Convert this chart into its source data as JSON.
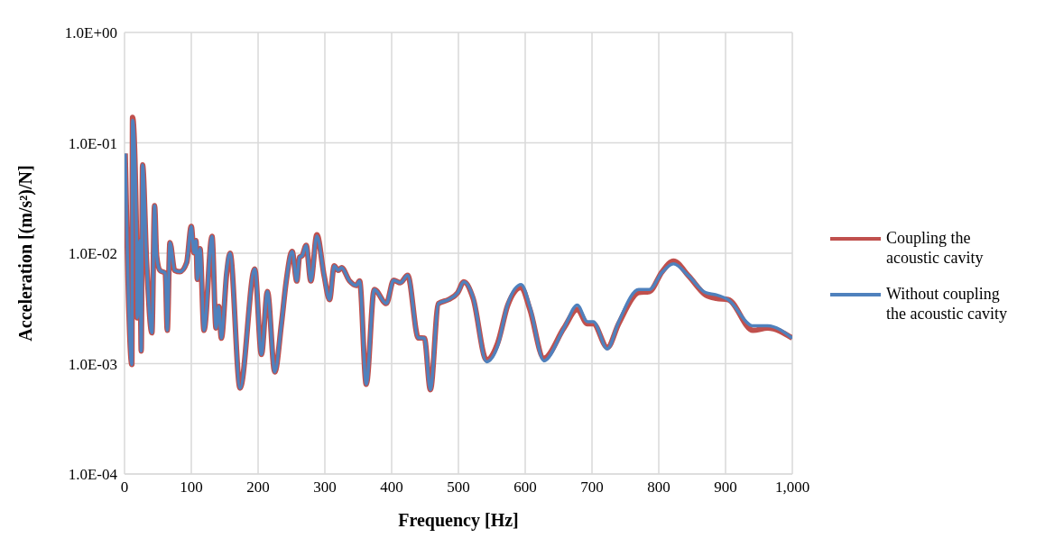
{
  "chart_data": {
    "type": "line",
    "xlabel": "Frequency [Hz]",
    "ylabel": "Acceleration [(m/s²)/N]",
    "log": "y",
    "grid": true,
    "legend": "right",
    "line_style": "solid",
    "marker": "none",
    "xlim": [
      0,
      1000
    ],
    "xticks": [
      0,
      100,
      200,
      300,
      400,
      500,
      600,
      700,
      800,
      900,
      {
        "value": 1000,
        "label": "1,000"
      }
    ],
    "ylim": [
      0.0001,
      1
    ],
    "yticks": [
      {
        "value": 0.0001,
        "label": "1.0E-04"
      },
      {
        "value": 0.001,
        "label": "1.0E-03"
      },
      {
        "value": 0.01,
        "label": "1.0E-02"
      },
      {
        "value": 0.1,
        "label": "1.0E-01"
      },
      {
        "value": 1,
        "label": "1.0E+00"
      }
    ],
    "x": [
      1,
      11,
      12,
      18,
      19,
      23,
      25,
      27,
      33,
      41,
      45,
      48,
      53,
      61,
      64,
      68,
      75,
      83,
      93,
      100,
      104,
      107,
      109,
      113,
      119,
      131,
      137,
      141,
      145,
      153,
      158,
      173,
      195,
      205,
      214,
      225,
      235,
      242,
      251,
      258,
      262,
      266,
      272,
      279,
      288,
      299,
      307,
      314,
      320,
      325,
      337,
      347,
      352,
      362,
      374,
      392,
      403,
      413,
      424,
      440,
      449,
      458,
      470,
      485,
      499,
      508,
      522,
      542,
      559,
      574,
      594,
      607,
      628,
      658,
      678,
      693,
      702,
      723,
      740,
      770,
      786,
      805,
      822,
      845,
      870,
      886,
      904,
      941,
      963,
      1000
    ],
    "series": [
      {
        "name": "Coupling the acoustic cavity",
        "color": "#c0504d",
        "values": [
          0.08,
          0.00098,
          0.17,
          0.0135,
          0.0026,
          0.013,
          0.0013,
          0.063,
          0.0085,
          0.0019,
          0.027,
          0.0095,
          0.007,
          0.0066,
          0.002,
          0.0125,
          0.007,
          0.0068,
          0.0082,
          0.0175,
          0.0101,
          0.013,
          0.0058,
          0.011,
          0.002,
          0.0142,
          0.0021,
          0.0033,
          0.0017,
          0.0066,
          0.01,
          0.0006,
          0.0072,
          0.00121,
          0.0045,
          0.00084,
          0.0023,
          0.0055,
          0.0104,
          0.0056,
          0.0092,
          0.0095,
          0.0118,
          0.0056,
          0.0147,
          0.0062,
          0.0038,
          0.0077,
          0.007,
          0.0074,
          0.0056,
          0.0051,
          0.0056,
          0.00065,
          0.0047,
          0.0035,
          0.0057,
          0.0054,
          0.0063,
          0.00171,
          0.0017,
          0.00058,
          0.0035,
          0.0038,
          0.0044,
          0.0055,
          0.0039,
          0.00108,
          0.00155,
          0.0034,
          0.0049,
          0.0031,
          0.00112,
          0.0021,
          0.0031,
          0.0023,
          0.0023,
          0.0014,
          0.0023,
          0.0044,
          0.0045,
          0.0068,
          0.0085,
          0.0062,
          0.0042,
          0.0039,
          0.0038,
          0.002,
          0.0021,
          0.0017
        ]
      },
      {
        "name": "Without coupling the acoustic cavity",
        "color": "#4f81bd",
        "values": [
          0.08,
          0.00098,
          0.16,
          0.0135,
          0.0026,
          0.013,
          0.0013,
          0.063,
          0.0085,
          0.0019,
          0.027,
          0.0095,
          0.007,
          0.0066,
          0.002,
          0.0125,
          0.007,
          0.0068,
          0.0082,
          0.0175,
          0.0101,
          0.013,
          0.0058,
          0.011,
          0.002,
          0.0142,
          0.0021,
          0.0033,
          0.0017,
          0.0072,
          0.01,
          0.0006,
          0.0072,
          0.00121,
          0.0045,
          0.00084,
          0.0023,
          0.0055,
          0.0104,
          0.0056,
          0.0092,
          0.0095,
          0.0118,
          0.0056,
          0.0143,
          0.0062,
          0.0038,
          0.0077,
          0.007,
          0.0074,
          0.0056,
          0.0051,
          0.0056,
          0.00065,
          0.0047,
          0.0035,
          0.0057,
          0.0054,
          0.0063,
          0.00171,
          0.0017,
          0.00058,
          0.0035,
          0.0038,
          0.0044,
          0.0055,
          0.004,
          0.00104,
          0.00146,
          0.0035,
          0.0052,
          0.0033,
          0.00106,
          0.0021,
          0.0034,
          0.0024,
          0.0024,
          0.00136,
          0.0024,
          0.0047,
          0.0047,
          0.0067,
          0.008,
          0.0062,
          0.0044,
          0.0042,
          0.0038,
          0.0022,
          0.0022,
          0.0017
        ]
      }
    ]
  }
}
